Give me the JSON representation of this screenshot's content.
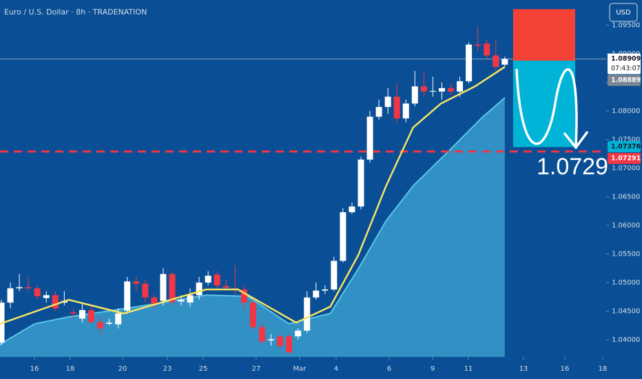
{
  "chart_data": {
    "type": "candlestick",
    "title": "Euro / U.S. Dollar · 8h · TRADENATION",
    "currency": "USD",
    "up_color": "#ffffff",
    "down_color": "#f23645",
    "open": [
      1.0395,
      1.0465,
      1.049,
      1.0492,
      1.049,
      1.0473,
      1.0478,
      1.0465,
      1.0448,
      1.0437,
      1.0452,
      1.0431,
      1.0428,
      1.0427,
      1.0451,
      1.0502,
      1.0498,
      1.0474,
      1.0468,
      1.0515,
      1.0467,
      1.0465,
      1.0478,
      1.05,
      1.0514,
      1.0494,
      1.049,
      1.0488,
      1.0465,
      1.0422,
      1.0399,
      1.0406,
      1.0406,
      1.0406,
      1.0416,
      1.0474,
      1.0486,
      1.0488,
      1.0538,
      1.0623,
      1.0633,
      1.0715,
      1.079,
      1.0807,
      1.0825,
      1.0787,
      1.0813,
      1.0843,
      1.0834,
      1.0834,
      1.084,
      1.0834,
      1.0852,
      1.0916,
      1.0918,
      1.0897,
      1.0881
    ],
    "high": [
      1.047,
      1.05,
      1.0515,
      1.051,
      1.0495,
      1.0485,
      1.0485,
      1.0485,
      1.0455,
      1.0465,
      1.0458,
      1.044,
      1.0437,
      1.0455,
      1.051,
      1.051,
      1.0505,
      1.048,
      1.0525,
      1.052,
      1.0478,
      1.049,
      1.051,
      1.052,
      1.052,
      1.0505,
      1.053,
      1.0495,
      1.047,
      1.043,
      1.041,
      1.041,
      1.041,
      1.042,
      1.0485,
      1.05,
      1.0495,
      1.0545,
      1.063,
      1.064,
      1.072,
      1.08,
      1.082,
      1.084,
      1.085,
      1.082,
      1.087,
      1.087,
      1.086,
      1.085,
      1.0848,
      1.086,
      1.092,
      1.0948,
      1.0925,
      1.0925,
      1.0895
    ],
    "low": [
      1.039,
      1.0455,
      1.0485,
      1.0485,
      1.047,
      1.0465,
      1.045,
      1.046,
      1.0438,
      1.043,
      1.0428,
      1.041,
      1.0425,
      1.042,
      1.0445,
      1.0485,
      1.0465,
      1.0455,
      1.046,
      1.046,
      1.046,
      1.0458,
      1.047,
      1.0495,
      1.049,
      1.0485,
      1.048,
      1.0455,
      1.0418,
      1.0392,
      1.039,
      1.0385,
      1.0375,
      1.04,
      1.0412,
      1.047,
      1.048,
      1.0485,
      1.0535,
      1.062,
      1.0628,
      1.071,
      1.0785,
      1.0795,
      1.078,
      1.078,
      1.0808,
      1.0825,
      1.0825,
      1.082,
      1.0828,
      1.0825,
      1.0848,
      1.0905,
      1.089,
      1.087,
      1.0878
    ],
    "close": [
      1.0465,
      1.049,
      1.0492,
      1.049,
      1.0476,
      1.0478,
      1.0455,
      1.0468,
      1.0446,
      1.0452,
      1.0431,
      1.042,
      1.043,
      1.0446,
      1.0502,
      1.0498,
      1.0474,
      1.0462,
      1.0515,
      1.0466,
      1.047,
      1.0478,
      1.05,
      1.0512,
      1.0495,
      1.0491,
      1.0488,
      1.0465,
      1.0422,
      1.0397,
      1.0401,
      1.0389,
      1.0378,
      1.0416,
      1.0474,
      1.0486,
      1.0488,
      1.0538,
      1.0623,
      1.0633,
      1.0715,
      1.079,
      1.0807,
      1.0825,
      1.0787,
      1.0813,
      1.0843,
      1.0834,
      1.0835,
      1.084,
      1.0834,
      1.0852,
      1.0916,
      1.0914,
      1.0897,
      1.0877,
      1.0891
    ],
    "lines": [
      {
        "color": "#5cc6e6",
        "fill": "#3fa6d4",
        "x": [
          -0.15,
          3.7,
          7.5,
          15.2,
          22.8,
          27.4,
          32,
          36.6,
          39.7,
          42.8,
          45.8,
          49.7,
          53.5,
          56
        ],
        "values": [
          1.0392,
          1.0428,
          1.044,
          1.0458,
          1.0478,
          1.0476,
          1.0428,
          1.0446,
          1.0524,
          1.0608,
          1.0669,
          1.0729,
          1.0789,
          1.0823
        ]
      },
      {
        "color": "#f7e463",
        "x": [
          -0.15,
          7.5,
          13.6,
          22.8,
          26.3,
          29,
          32.8,
          36.6,
          39.7,
          42.8,
          45.8,
          48.9,
          52.7,
          56
        ],
        "values": [
          1.0428,
          1.047,
          1.0446,
          1.0488,
          1.0488,
          1.0464,
          1.043,
          1.0458,
          1.0548,
          1.0669,
          1.0771,
          1.0813,
          1.0843,
          1.0877
        ]
      }
    ],
    "levels": [
      {
        "value": 1.07291,
        "color": "#f23645",
        "style": "dashed"
      },
      {
        "value": 1.08909,
        "color": "#8fa9c4",
        "style": "solid"
      }
    ],
    "boxes": [
      {
        "color": "#f44336",
        "x": [
          56.93,
          63.83
        ],
        "top": 1.0978,
        "bottom": 1.0888
      },
      {
        "color": "#00b4d8",
        "x": [
          56.93,
          63.83
        ],
        "top": 1.0888,
        "bottom": 1.0737
      }
    ],
    "price_tags": [
      {
        "value": 1.08909,
        "sub": "07:43:07",
        "bg": "#ffffff",
        "fg": "#131722"
      },
      {
        "value": 1.08889,
        "bg": "#7c8793",
        "fg": "#ffffff"
      },
      {
        "value": 1.07376,
        "bg": "#00b4d8",
        "fg": "#131722"
      },
      {
        "value": 1.07291,
        "bg": "#f23645",
        "fg": "#ffffff"
      }
    ],
    "annotation": "1.0729",
    "xlim": [
      -0.153,
      67.28
    ],
    "xticks": [
      {
        "value": 3.68,
        "label": "16"
      },
      {
        "value": 7.66,
        "label": "18"
      },
      {
        "value": 13.49,
        "label": "20"
      },
      {
        "value": 18.47,
        "label": "23"
      },
      {
        "value": 22.45,
        "label": "25"
      },
      {
        "value": 28.35,
        "label": "27"
      },
      {
        "value": 33.18,
        "label": "Mar"
      },
      {
        "value": 37.24,
        "label": "4"
      },
      {
        "value": 43.14,
        "label": "6"
      },
      {
        "value": 47.97,
        "label": "9"
      },
      {
        "value": 51.95,
        "label": "11"
      },
      {
        "value": 58.08,
        "label": "13"
      },
      {
        "value": 62.68,
        "label": "16"
      },
      {
        "value": 66.9,
        "label": "18"
      }
    ],
    "ylim": [
      1.037,
      1.0994
    ],
    "yticks": [
      {
        "value": 1.04,
        "label": "1.04000"
      },
      {
        "value": 1.045,
        "label": "1.04500"
      },
      {
        "value": 1.05,
        "label": "1.05000"
      },
      {
        "value": 1.055,
        "label": "1.05500"
      },
      {
        "value": 1.06,
        "label": "1.06000"
      },
      {
        "value": 1.065,
        "label": "1.06500"
      },
      {
        "value": 1.07,
        "label": "1.07000"
      },
      {
        "value": 1.075,
        "label": "1.07500"
      },
      {
        "value": 1.08,
        "label": "1.08000"
      },
      {
        "value": 1.085,
        "label": "1.08500"
      },
      {
        "value": 1.09,
        "label": "1.09000"
      },
      {
        "value": 1.095,
        "label": "1.09500"
      }
    ]
  }
}
